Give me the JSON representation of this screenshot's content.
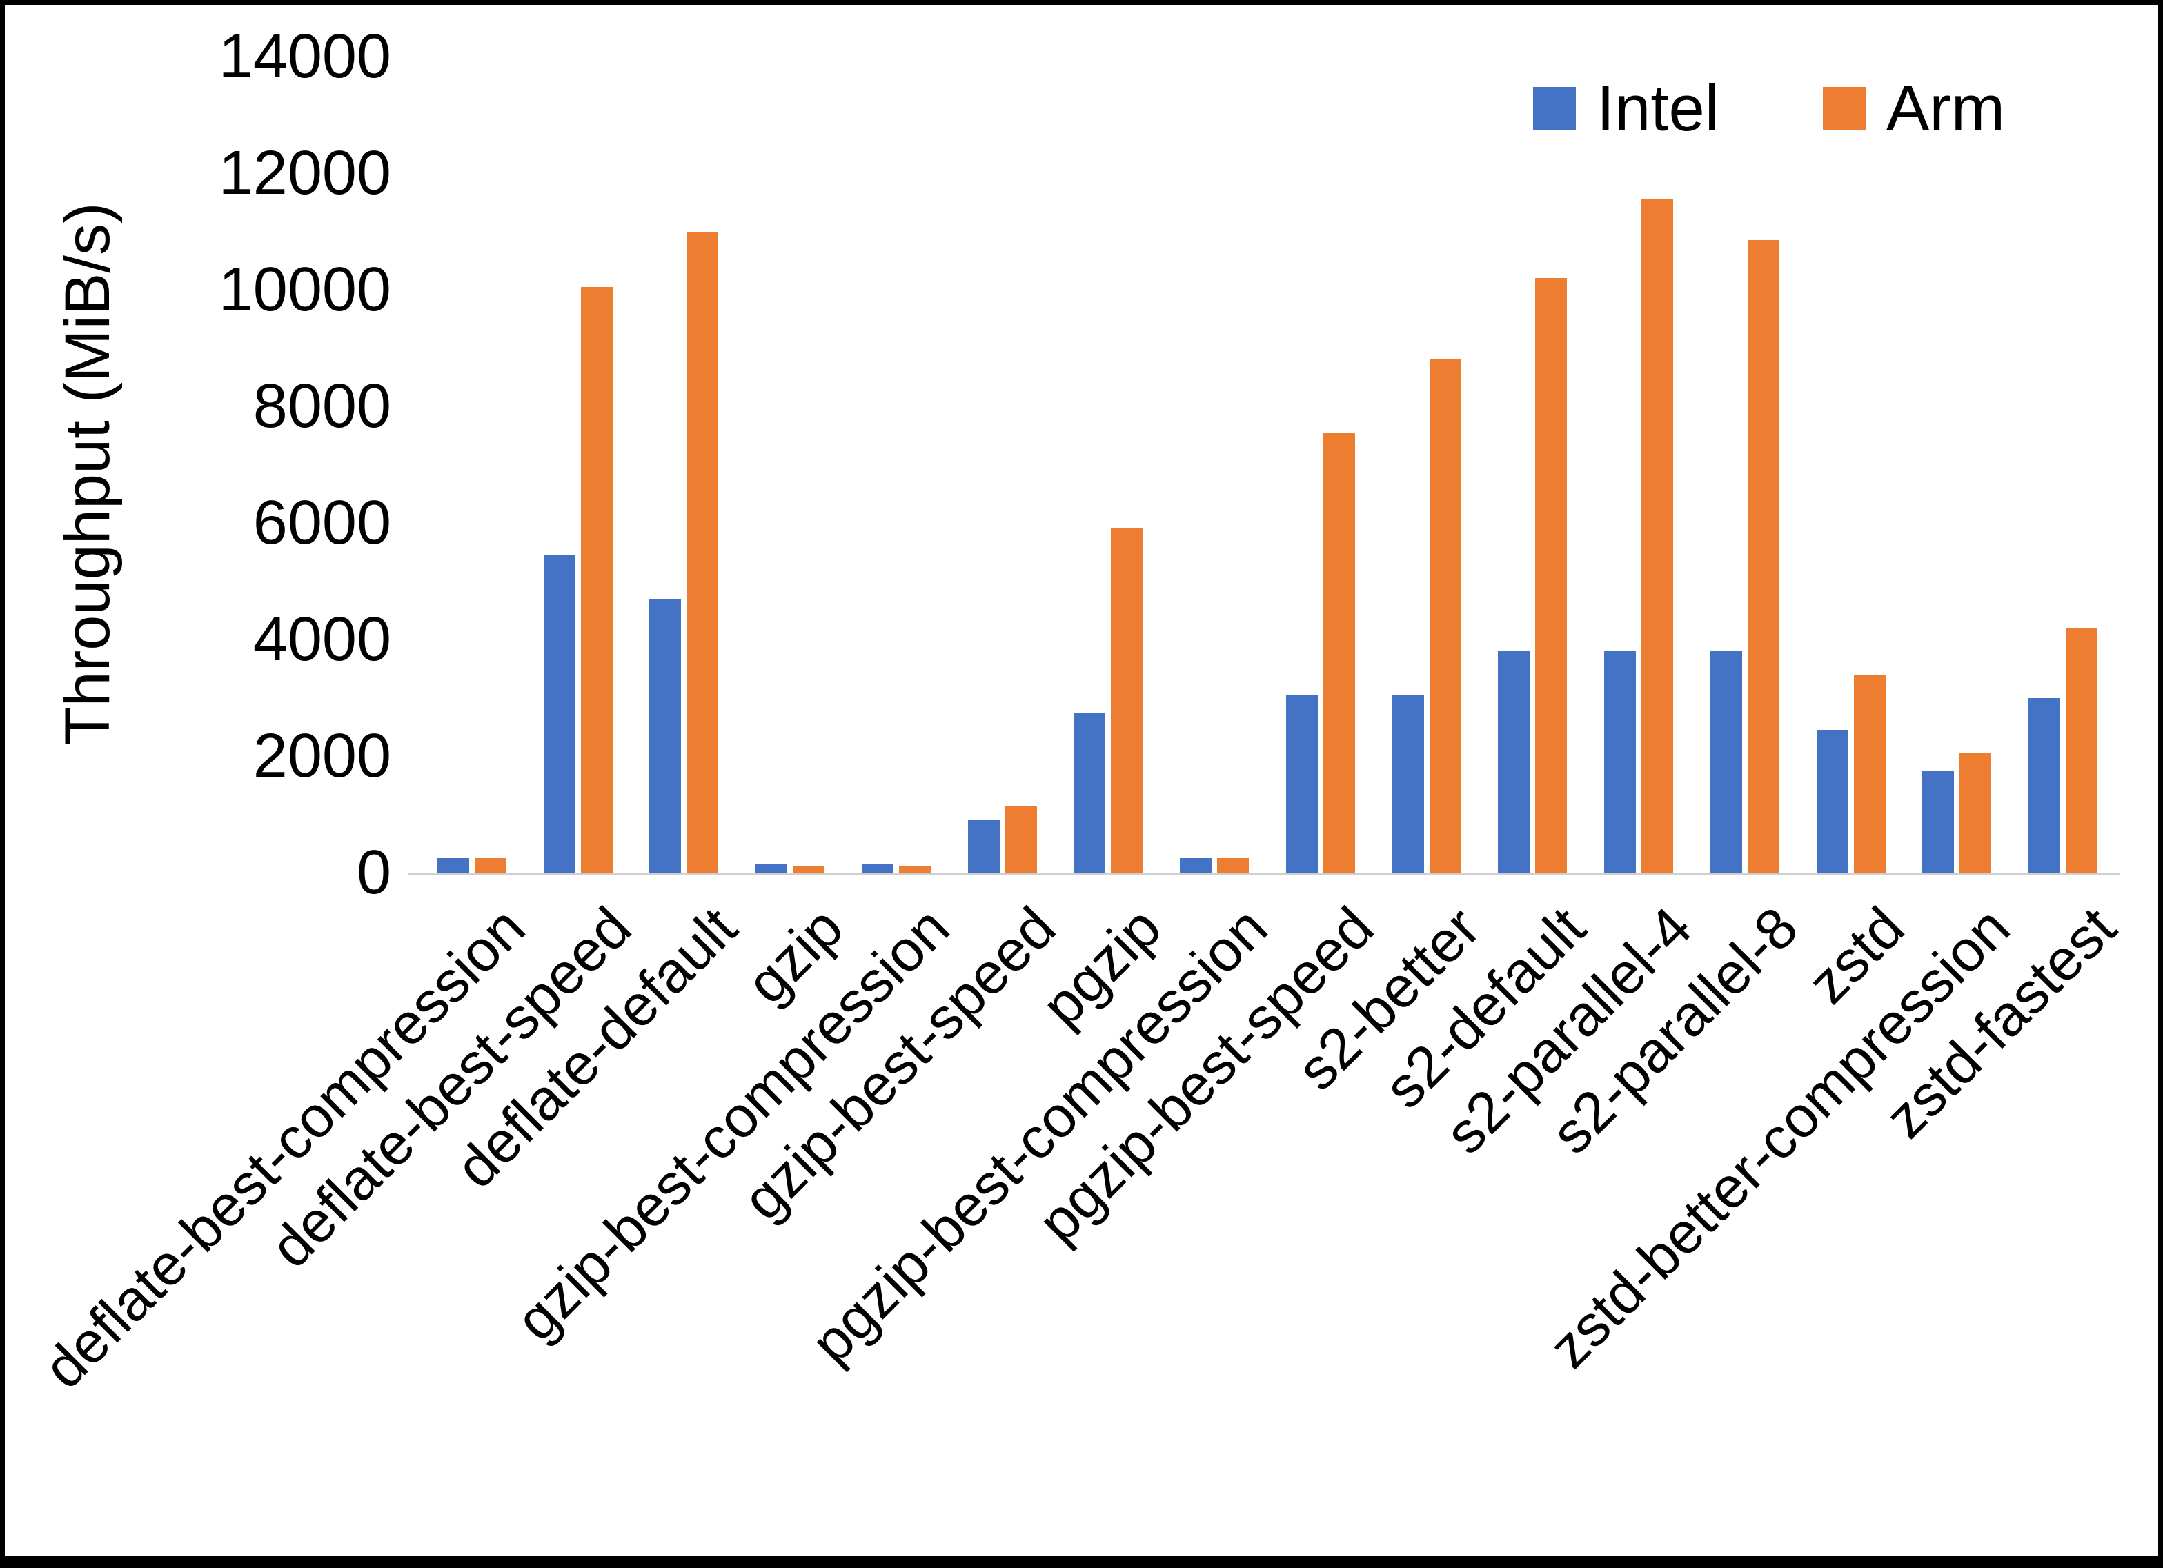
{
  "chart_data": {
    "type": "bar",
    "title": "",
    "xlabel": "",
    "ylabel": "Throughput (MiB/s)",
    "ylim": [
      0,
      14000
    ],
    "ytick_step": 2000,
    "grid": false,
    "legend_position": "top-right",
    "categories": [
      "deflate-best-compression",
      "deflate-best-speed",
      "deflate-default",
      "gzip",
      "gzip-best-compression",
      "gzip-best-speed",
      "pgzip",
      "pgzip-best-compression",
      "pgzip-best-speed",
      "s2-better",
      "s2-default",
      "s2-parallel-4",
      "s2-parallel-8",
      "zstd",
      "zstd-better-compression",
      "zstd-fastest"
    ],
    "series": [
      {
        "name": "Intel",
        "color": "#4472C4",
        "values": [
          250,
          5450,
          4700,
          150,
          150,
          900,
          2750,
          250,
          3050,
          3050,
          3800,
          3800,
          3800,
          2450,
          1750,
          3000
        ]
      },
      {
        "name": "Arm",
        "color": "#ED7D31",
        "values": [
          250,
          10050,
          11000,
          120,
          120,
          1150,
          5900,
          250,
          7550,
          8800,
          10200,
          11550,
          10850,
          3400,
          2050,
          4200
        ]
      }
    ]
  }
}
